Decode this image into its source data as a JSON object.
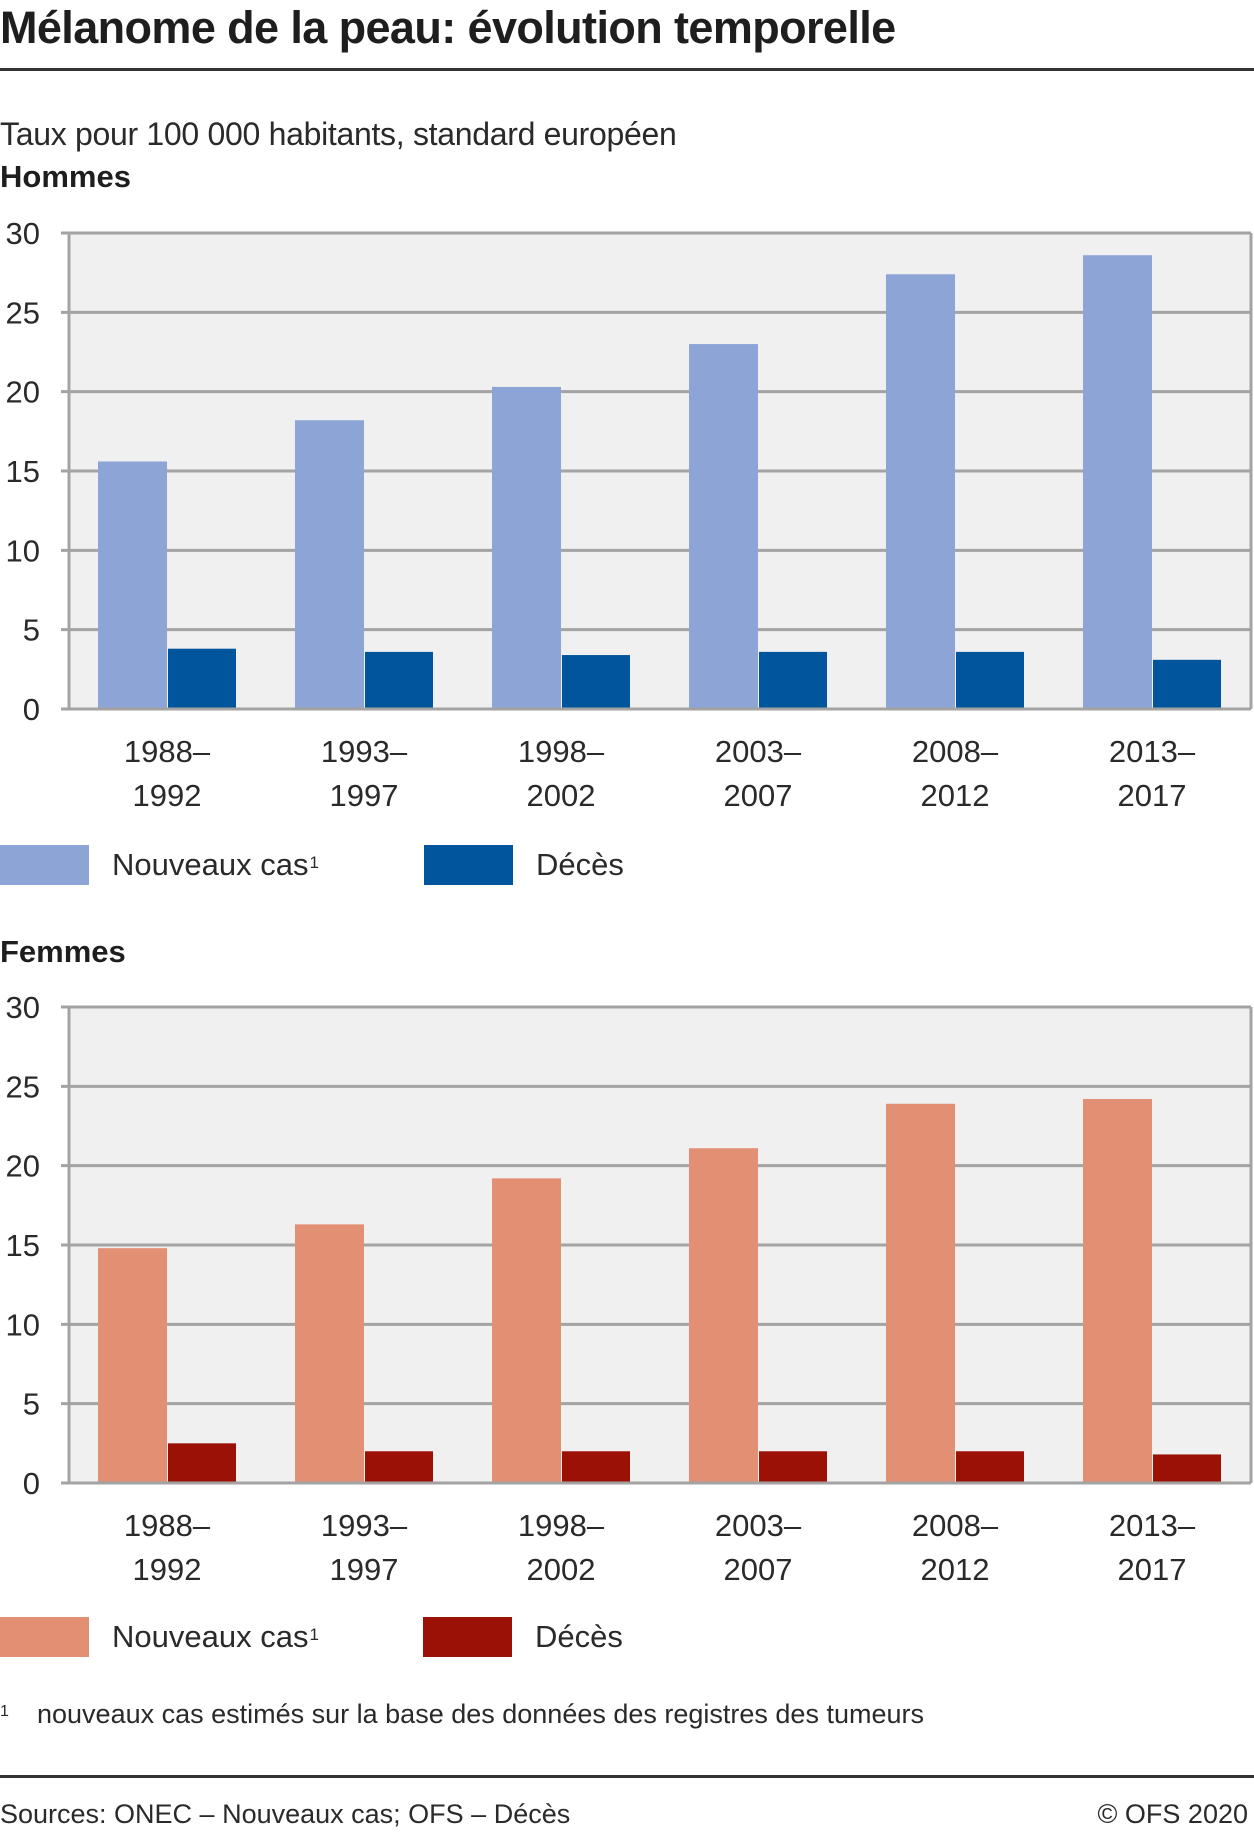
{
  "title": "Mélanome de la peau: évolution temporelle",
  "subtitle": "Taux pour 100 000 habitants, standard européen",
  "colors": {
    "men_new": "#8DA5D6",
    "men_deaths": "#00559D",
    "women_new": "#E28F74",
    "women_deaths": "#9B1106",
    "plot_background": "#F0F0F0",
    "grid": "#A3A3A3"
  },
  "chart_data": [
    {
      "type": "bar",
      "title": "Hommes",
      "xlabel": "",
      "ylabel": "Taux pour 100 000 habitants, standard européen",
      "ylim": [
        0,
        30
      ],
      "yticks": [
        "0",
        "5",
        "10",
        "15",
        "20",
        "25",
        "30"
      ],
      "grid": true,
      "categories": [
        [
          "1988–",
          "1992"
        ],
        [
          "1993–",
          "1997"
        ],
        [
          "1998–",
          "2002"
        ],
        [
          "2003–",
          "2007"
        ],
        [
          "2008–",
          "2012"
        ],
        [
          "2013–",
          "2017"
        ]
      ],
      "series": [
        {
          "name": "Nouveaux cas",
          "superscript": "1",
          "color": "#8DA5D6",
          "values": [
            15.6,
            18.2,
            20.3,
            23.0,
            27.4,
            28.6
          ]
        },
        {
          "name": "Décès",
          "superscript": "",
          "color": "#00559D",
          "values": [
            3.8,
            3.6,
            3.4,
            3.6,
            3.6,
            3.1
          ]
        }
      ],
      "legend_position": "bottom-left"
    },
    {
      "type": "bar",
      "title": "Femmes",
      "xlabel": "",
      "ylabel": "Taux pour 100 000 habitants, standard européen",
      "ylim": [
        0,
        30
      ],
      "yticks": [
        "0",
        "5",
        "10",
        "15",
        "20",
        "25",
        "30"
      ],
      "grid": true,
      "categories": [
        [
          "1988–",
          "1992"
        ],
        [
          "1993–",
          "1997"
        ],
        [
          "1998–",
          "2002"
        ],
        [
          "2003–",
          "2007"
        ],
        [
          "2008–",
          "2012"
        ],
        [
          "2013–",
          "2017"
        ]
      ],
      "series": [
        {
          "name": "Nouveaux cas",
          "superscript": "1",
          "color": "#E28F74",
          "values": [
            14.8,
            16.3,
            19.2,
            21.1,
            23.9,
            24.2
          ]
        },
        {
          "name": "Décès",
          "superscript": "",
          "color": "#9B1106",
          "values": [
            2.5,
            2.0,
            2.0,
            2.0,
            2.0,
            1.8
          ]
        }
      ],
      "legend_position": "bottom-left"
    }
  ],
  "footnote": {
    "mark": "1",
    "text": "nouveaux cas estimés sur la base des données des registres des tumeurs"
  },
  "sources": "Sources: ONEC – Nouveaux cas; OFS – Décès",
  "copyright": "© OFS 2020"
}
